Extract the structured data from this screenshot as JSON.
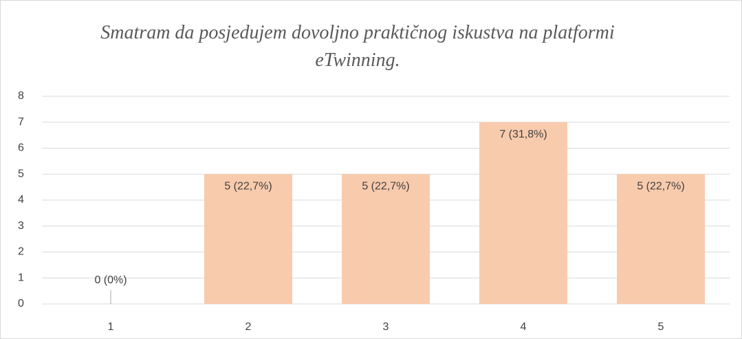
{
  "chart_data": {
    "type": "bar",
    "title": "Smatram da posjedujem dovoljno praktičnog iskustva na platformi eTwinning.",
    "categories": [
      "1",
      "2",
      "3",
      "4",
      "5"
    ],
    "values": [
      0,
      5,
      5,
      7,
      5
    ],
    "value_labels": [
      "0 (0%)",
      "5 (22,7%)",
      "5 (22,7%)",
      "7 (31,8%)",
      "5 (22,7%)"
    ],
    "color": "#f8cbad",
    "ylim": [
      0,
      8
    ],
    "yticks": [
      0,
      1,
      2,
      3,
      4,
      5,
      6,
      7,
      8
    ],
    "grid": true
  }
}
